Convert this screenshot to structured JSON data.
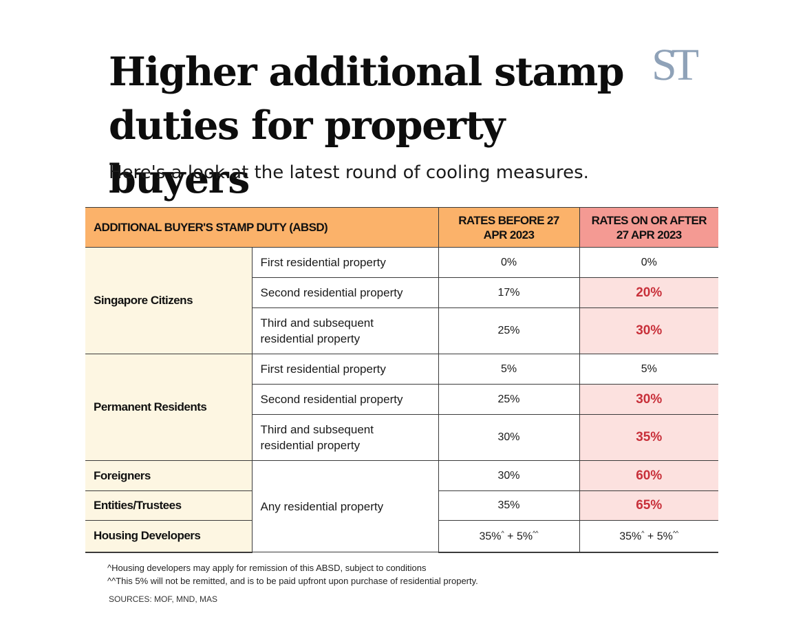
{
  "header": {
    "title": "Higher additional stamp duties for property buyers",
    "subtitle": "Here's a look at the latest round of cooling measures.",
    "logo": "ST"
  },
  "table": {
    "col_main": "ADDITIONAL BUYER'S STAMP DUTY (ABSD)",
    "col_before": "RATES BEFORE 27 APR 2023",
    "col_after": "RATES ON OR AFTER 27 APR 2023",
    "groups": {
      "citizens": "Singapore Citizens",
      "pr": "Permanent Residents",
      "foreigners": "Foreigners",
      "entities": "Entities/Trustees",
      "developers": "Housing Developers"
    },
    "types": {
      "first": "First residential property",
      "second": "Second residential property",
      "third": "Third and subsequent residential property",
      "any": "Any residential property"
    },
    "rows": {
      "sc_first": {
        "before": "0%",
        "after": "0%"
      },
      "sc_second": {
        "before": "17%",
        "after": "20%"
      },
      "sc_third": {
        "before": "25%",
        "after": "30%"
      },
      "pr_first": {
        "before": "5%",
        "after": "5%"
      },
      "pr_second": {
        "before": "25%",
        "after": "30%"
      },
      "pr_third": {
        "before": "30%",
        "after": "35%"
      },
      "foreigners": {
        "before": "30%",
        "after": "60%"
      },
      "entities": {
        "before": "35%",
        "after": "65%"
      },
      "developers": {
        "before": {
          "base": "35%",
          "mark1": "^",
          "plus": " + 5%",
          "mark2": "^^"
        },
        "after": {
          "base": "35%",
          "mark1": "^",
          "plus": " + 5%",
          "mark2": "^^"
        }
      }
    }
  },
  "notes": {
    "note1": "^Housing developers may apply for remission of this ABSD, subject to conditions",
    "note2": "^^This 5% will not be remitted, and is to be paid upfront upon purchase of residential property.",
    "sources": "SOURCES: MOF, MND, MAS"
  },
  "colors": {
    "header_orange": "#fbb26a",
    "header_pink": "#f49a93",
    "group_cream": "#fdf6e2",
    "highlight_pink": "#fce1df",
    "highlight_red_text": "#c8303a",
    "logo_blue_grey": "#8fa2b8"
  }
}
